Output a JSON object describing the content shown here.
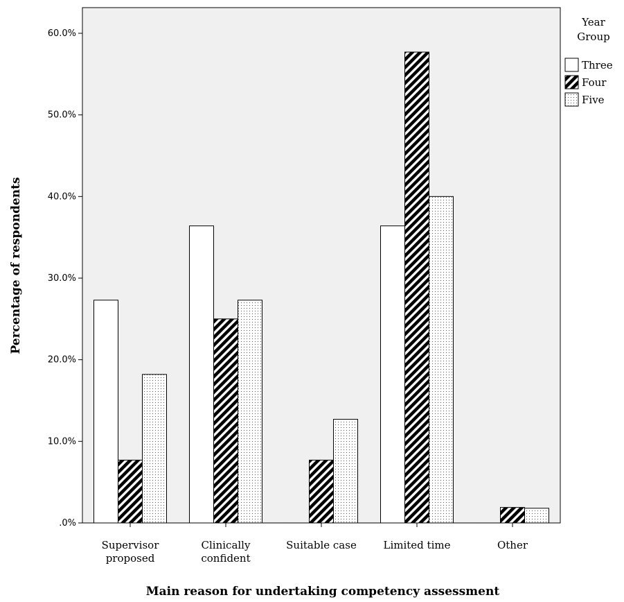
{
  "chart_data": {
    "type": "bar",
    "categories": [
      [
        "Supervisor",
        "proposed"
      ],
      [
        "Clinically",
        "confident"
      ],
      [
        "Suitable case"
      ],
      [
        "Limited time"
      ],
      [
        "Other"
      ]
    ],
    "series": [
      {
        "name": "Three",
        "pattern": "white",
        "values": [
          27.3,
          36.4,
          0.0,
          36.4,
          0.0
        ]
      },
      {
        "name": "Four",
        "pattern": "diagonal-hatch",
        "values": [
          7.7,
          25.0,
          7.7,
          57.7,
          1.9
        ]
      },
      {
        "name": "Five",
        "pattern": "dotted",
        "values": [
          18.2,
          27.3,
          12.7,
          40.0,
          1.8
        ]
      }
    ],
    "y_ticks": [
      ".0%",
      "10.0%",
      "20.0%",
      "30.0%",
      "40.0%",
      "50.0%",
      "60.0%"
    ],
    "ylim": [
      0,
      60
    ],
    "ylabel": "Percentage of respondents",
    "xlabel": "Main reason for undertaking competency assessment",
    "legend": {
      "title": [
        "Year",
        "Group"
      ],
      "placement": "top-right"
    },
    "plot_background": "#f0f0f0",
    "grid": false
  }
}
